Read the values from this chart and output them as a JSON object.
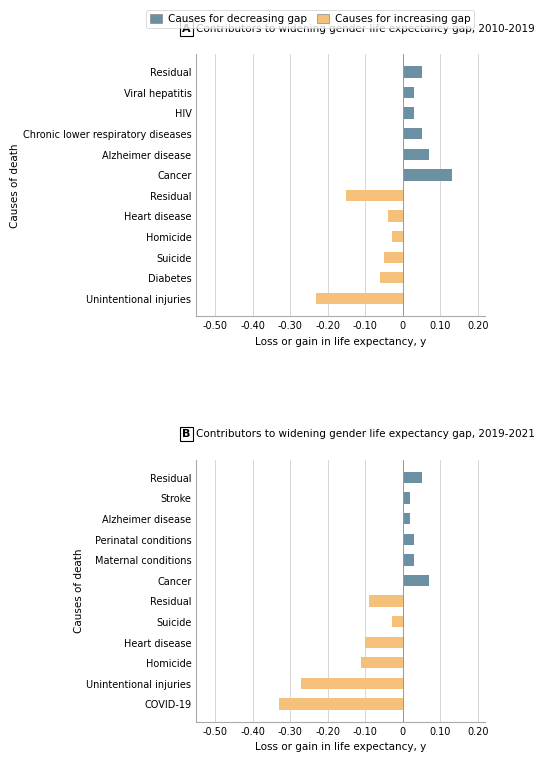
{
  "panel_A": {
    "title": "Contributors to widening gender life expectancy gap, 2010-2019",
    "categories": [
      "Residual",
      "Viral hepatitis",
      "HIV",
      "Chronic lower respiratory diseases",
      "Alzheimer disease",
      "Cancer",
      "Residual",
      "Heart disease",
      "Homicide",
      "Suicide",
      "Diabetes",
      "Unintentional injuries"
    ],
    "values": [
      0.05,
      0.03,
      0.03,
      0.05,
      0.07,
      0.13,
      -0.15,
      -0.04,
      -0.03,
      -0.05,
      -0.06,
      -0.23
    ],
    "colors": [
      "#6b8fa3",
      "#6b8fa3",
      "#6b8fa3",
      "#6b8fa3",
      "#6b8fa3",
      "#6b8fa3",
      "#f5c07a",
      "#f5c07a",
      "#f5c07a",
      "#f5c07a",
      "#f5c07a",
      "#f5c07a"
    ]
  },
  "panel_B": {
    "title": "Contributors to widening gender life expectancy gap, 2019-2021",
    "categories": [
      "Residual",
      "Stroke",
      "Alzheimer disease",
      "Perinatal conditions",
      "Maternal conditions",
      "Cancer",
      "Residual",
      "Suicide",
      "Heart disease",
      "Homicide",
      "Unintentional injuries",
      "COVID-19"
    ],
    "values": [
      0.05,
      0.02,
      0.02,
      0.03,
      0.03,
      0.07,
      -0.09,
      -0.03,
      -0.1,
      -0.11,
      -0.27,
      -0.33
    ],
    "colors": [
      "#6b8fa3",
      "#6b8fa3",
      "#6b8fa3",
      "#6b8fa3",
      "#6b8fa3",
      "#6b8fa3",
      "#f5c07a",
      "#f5c07a",
      "#f5c07a",
      "#f5c07a",
      "#f5c07a",
      "#f5c07a"
    ]
  },
  "xlim": [
    -0.55,
    0.22
  ],
  "xticks": [
    -0.5,
    -0.4,
    -0.3,
    -0.2,
    -0.1,
    0.0,
    0.1,
    0.2
  ],
  "xtick_labels": [
    "-0.50",
    "-0.40",
    "-0.30",
    "-0.20",
    "-0.10",
    "0",
    "0.10",
    "0.20"
  ],
  "xlabel": "Loss or gain in life expectancy, y",
  "ylabel": "Causes of death",
  "legend_blue_label": "Causes for decreasing gap",
  "legend_orange_label": "Causes for increasing gap",
  "blue_color": "#6b8fa3",
  "orange_color": "#f5c07a",
  "background_color": "#ffffff",
  "grid_color": "#d0d0d0",
  "bar_height": 0.55,
  "label_A": "A",
  "label_B": "B"
}
